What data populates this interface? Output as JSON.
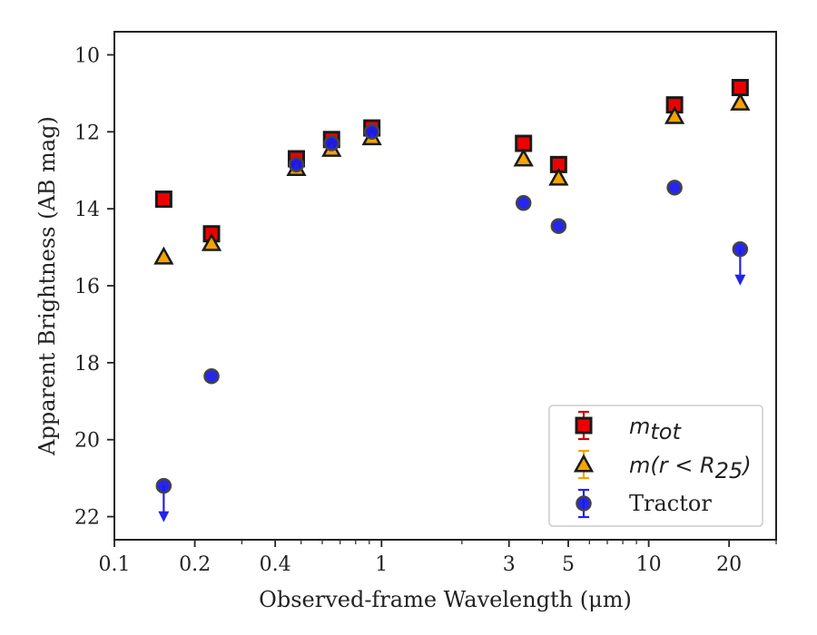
{
  "chart_data": {
    "type": "scatter",
    "xlabel": "Observed-frame Wavelength (μm)",
    "ylabel": "Apparent Brightness (AB mag)",
    "xscale": "log",
    "xlim": [
      0.1,
      30
    ],
    "ylim": [
      22.6,
      9.4
    ],
    "y_inverted": true,
    "grid": false,
    "legend_position": "bottom-right",
    "xticks": [
      {
        "value": 0.1,
        "label": "0.1"
      },
      {
        "value": 0.2,
        "label": "0.2"
      },
      {
        "value": 0.4,
        "label": "0.4"
      },
      {
        "value": 1,
        "label": "1"
      },
      {
        "value": 3,
        "label": "3"
      },
      {
        "value": 5,
        "label": "5"
      },
      {
        "value": 10,
        "label": "10"
      },
      {
        "value": 20,
        "label": "20"
      }
    ],
    "yticks": [
      {
        "value": 10,
        "label": "10"
      },
      {
        "value": 12,
        "label": "12"
      },
      {
        "value": 14,
        "label": "14"
      },
      {
        "value": 16,
        "label": "16"
      },
      {
        "value": 18,
        "label": "18"
      },
      {
        "value": 20,
        "label": "20"
      },
      {
        "value": 22,
        "label": "22"
      }
    ],
    "series": [
      {
        "name": "m_tot",
        "legend_main": "m",
        "legend_sub": "tot",
        "marker": "square",
        "face_color": "#ee0000",
        "edge_color": "#1a1a1a",
        "errorbar_color": "#cc0000",
        "points": [
          {
            "x": 0.153,
            "y": 13.75
          },
          {
            "x": 0.231,
            "y": 14.65
          },
          {
            "x": 0.48,
            "y": 12.7
          },
          {
            "x": 0.65,
            "y": 12.2
          },
          {
            "x": 0.92,
            "y": 11.9
          },
          {
            "x": 3.4,
            "y": 12.3
          },
          {
            "x": 4.6,
            "y": 12.85
          },
          {
            "x": 12.5,
            "y": 11.3
          },
          {
            "x": 22.0,
            "y": 10.85
          }
        ]
      },
      {
        "name": "m(r < R_25)",
        "legend_main": "m(r < R",
        "legend_sub": "25",
        "legend_tail": ")",
        "marker": "triangle",
        "face_color": "#f5a300",
        "edge_color": "#1a1a1a",
        "errorbar_color": "#f5a300",
        "points": [
          {
            "x": 0.153,
            "y": 15.25
          },
          {
            "x": 0.231,
            "y": 14.9
          },
          {
            "x": 0.48,
            "y": 12.95
          },
          {
            "x": 0.65,
            "y": 12.45
          },
          {
            "x": 0.92,
            "y": 12.15
          },
          {
            "x": 3.4,
            "y": 12.7
          },
          {
            "x": 4.6,
            "y": 13.2
          },
          {
            "x": 12.5,
            "y": 11.6
          },
          {
            "x": 22.0,
            "y": 11.25
          }
        ]
      },
      {
        "name": "Tractor",
        "legend_main": "Tractor",
        "marker": "circle",
        "face_color": "#1a1aee",
        "edge_color": "#444444",
        "errorbar_color": "#2222ee",
        "points": [
          {
            "x": 0.153,
            "y": 21.2,
            "upper_limit": true
          },
          {
            "x": 0.231,
            "y": 18.35
          },
          {
            "x": 0.48,
            "y": 12.85
          },
          {
            "x": 0.65,
            "y": 12.3
          },
          {
            "x": 0.92,
            "y": 12.0
          },
          {
            "x": 3.4,
            "y": 13.85
          },
          {
            "x": 4.6,
            "y": 14.45
          },
          {
            "x": 12.5,
            "y": 13.45
          },
          {
            "x": 22.0,
            "y": 15.05,
            "upper_limit": true
          }
        ]
      }
    ]
  }
}
